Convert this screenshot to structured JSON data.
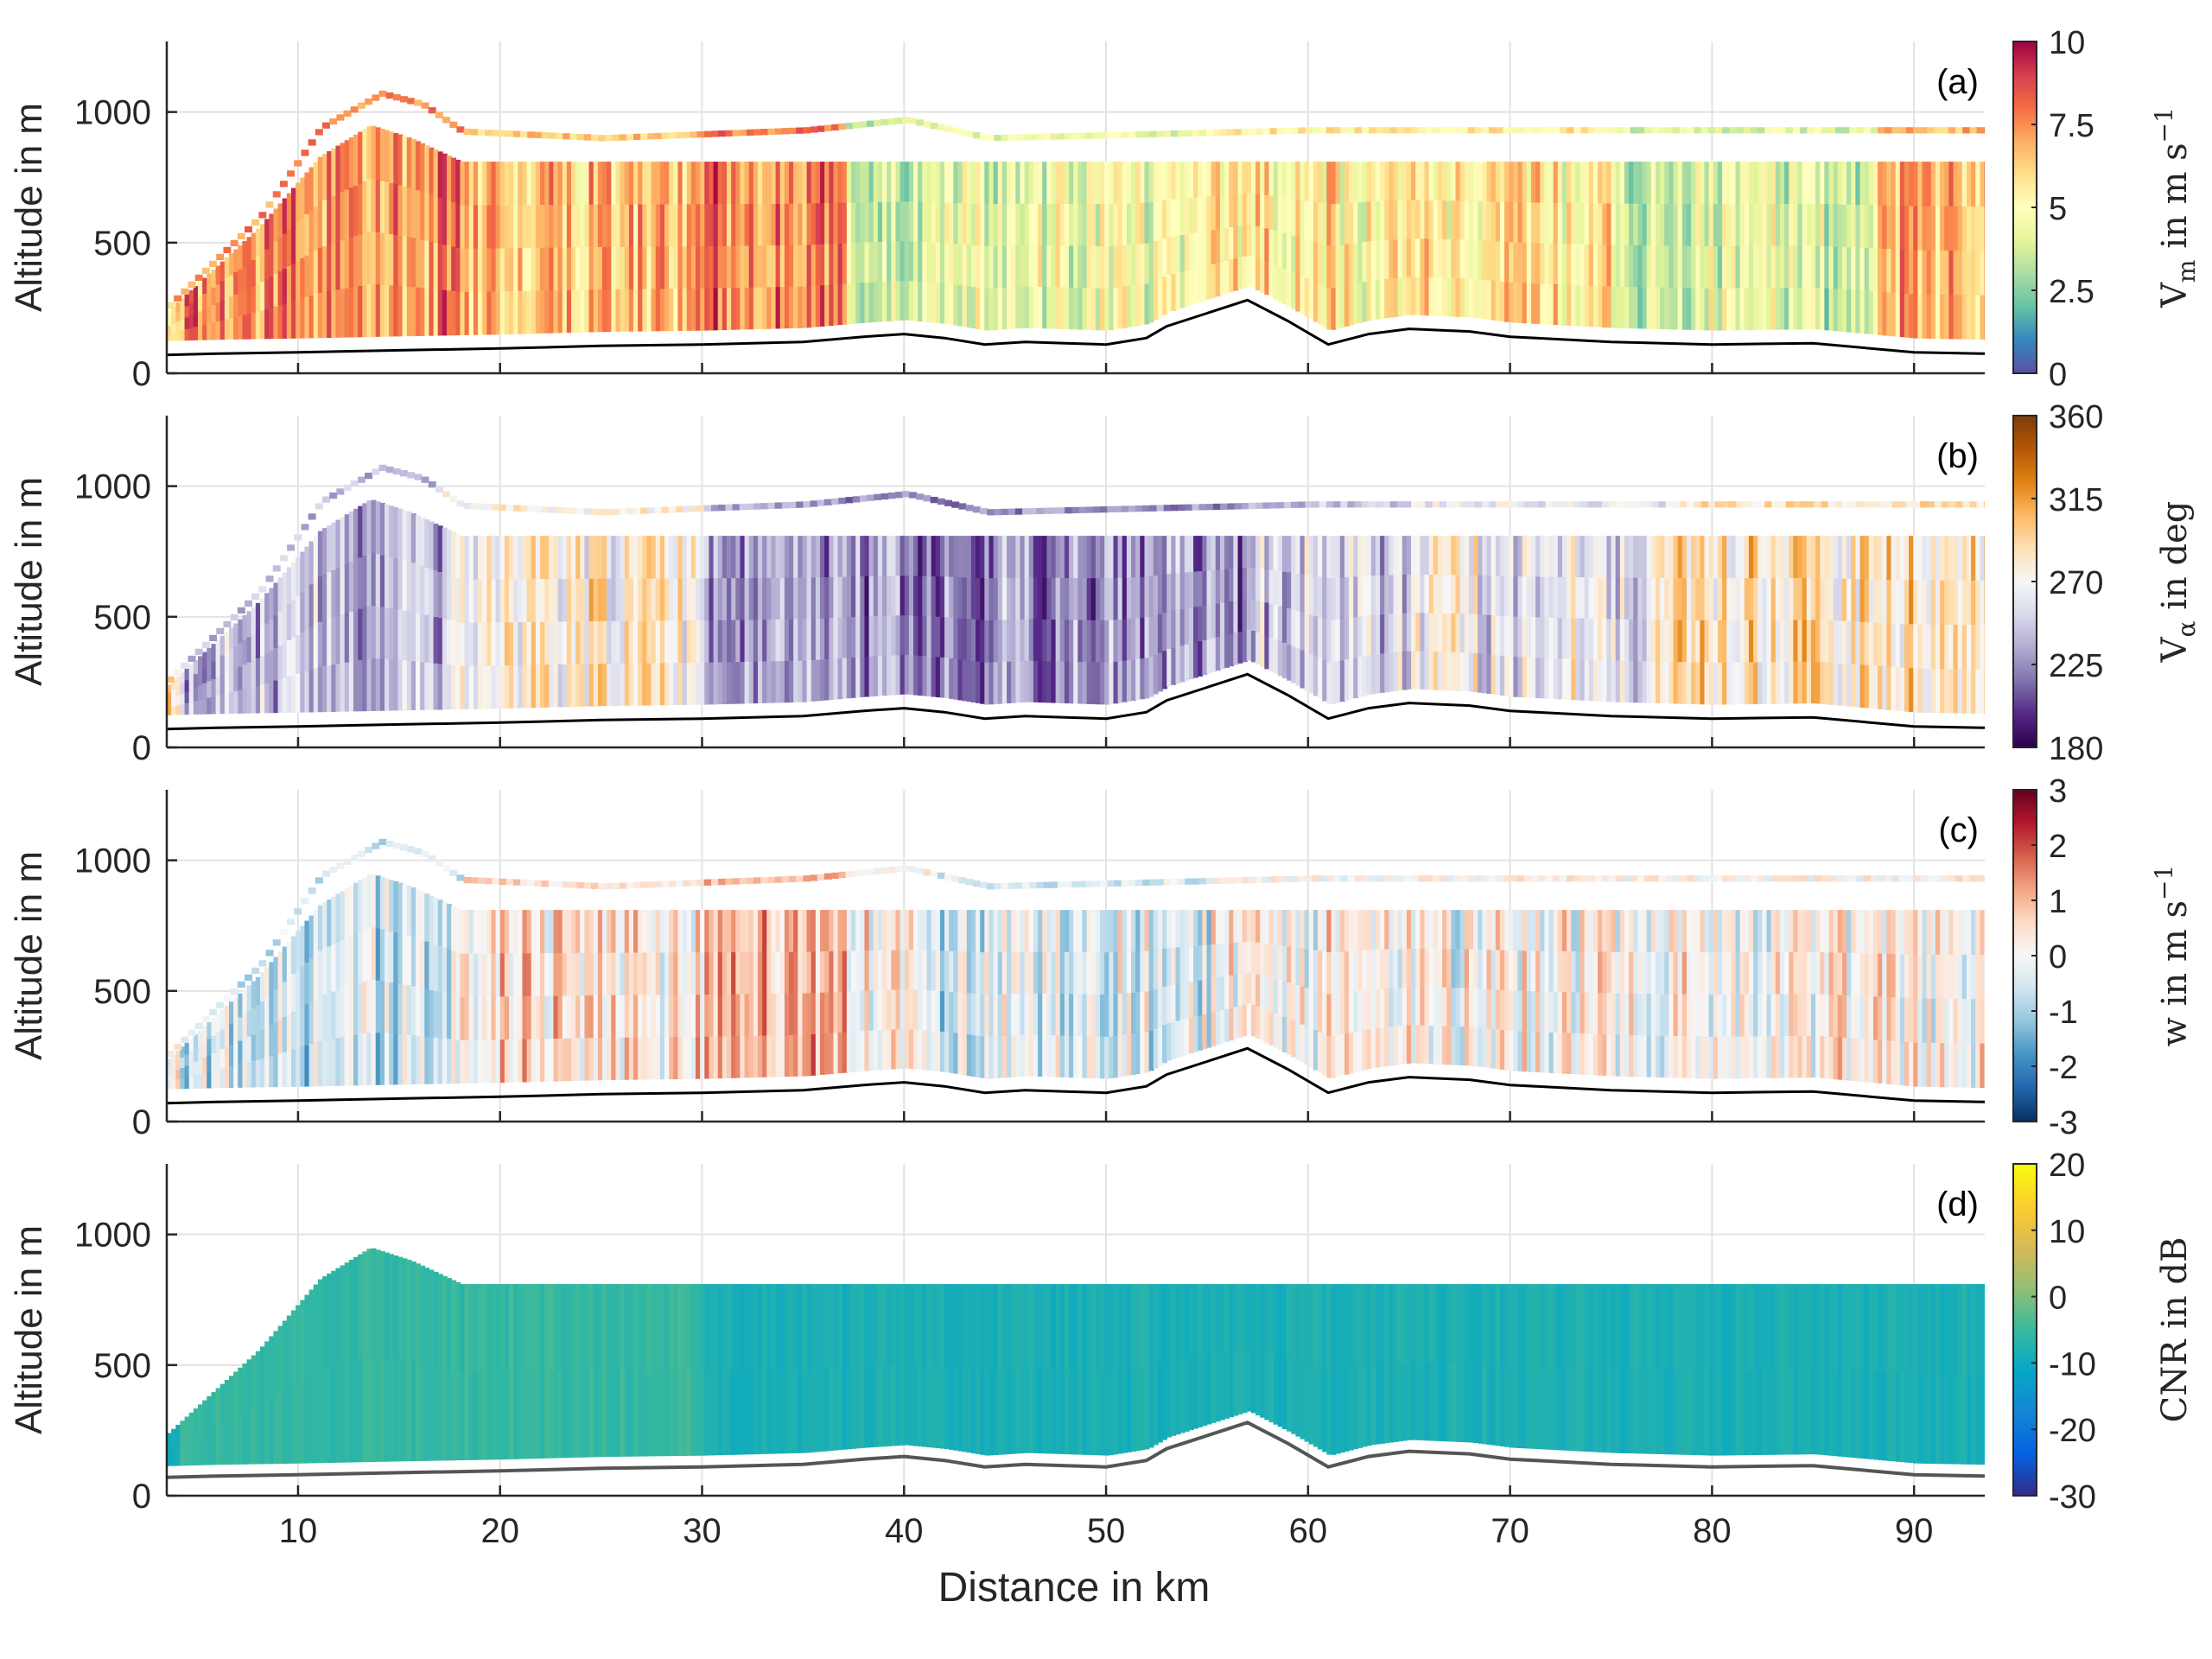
{
  "figure": {
    "x_axis_label": "Distance in km",
    "y_axis_label": "Altitude in m"
  },
  "chart_data": [
    {
      "type": "heatmap",
      "panel_label": "(a)",
      "xlabel": "",
      "ylabel": "Altitude in m",
      "xlim": [
        3.5,
        93.5
      ],
      "ylim": [
        0,
        1270
      ],
      "xticks": [
        10,
        20,
        30,
        40,
        50,
        60,
        70,
        80,
        90
      ],
      "yticks": [
        0,
        500,
        1000
      ],
      "grid": true,
      "colorbar": {
        "label": "V_m in m s^-1",
        "range": [
          0,
          10
        ],
        "ticks": [
          "0",
          "2.5",
          "5",
          "7.5",
          "10"
        ],
        "tick_values": [
          0,
          2.5,
          5,
          7.5,
          10
        ],
        "colormap": "spectral",
        "colors": [
          "#5e4fa2",
          "#3288bd",
          "#66c2a5",
          "#abdda4",
          "#e6f598",
          "#ffffbf",
          "#fee08b",
          "#fdae61",
          "#f46d43",
          "#d53e4f",
          "#9e0142"
        ]
      },
      "terrain_line": {
        "distance_km": [
          3.5,
          6,
          10,
          15,
          20,
          25,
          30,
          35,
          38,
          40,
          42,
          44,
          46,
          48,
          50,
          52,
          53,
          55,
          57,
          59,
          61,
          63,
          65,
          68,
          70,
          75,
          80,
          85,
          90,
          93.5
        ],
        "altitude_m": [
          70,
          75,
          80,
          88,
          95,
          105,
          110,
          120,
          140,
          150,
          135,
          110,
          120,
          115,
          110,
          135,
          180,
          230,
          280,
          200,
          110,
          150,
          170,
          160,
          140,
          120,
          110,
          115,
          80,
          75
        ]
      },
      "data_top_m": [
        {
          "distance_km": 3.5,
          "altitude_m": 240
        },
        {
          "distance_km": 8,
          "altitude_m": 560
        },
        {
          "distance_km": 11,
          "altitude_m": 830
        },
        {
          "distance_km": 13.5,
          "altitude_m": 950
        },
        {
          "distance_km": 15.5,
          "altitude_m": 900
        },
        {
          "distance_km": 18,
          "altitude_m": 810
        },
        {
          "distance_km": 93.5,
          "altitude_m": 810
        }
      ],
      "upper_track_m": [
        {
          "distance_km": 3.5,
          "altitude_m": 260
        },
        {
          "distance_km": 8,
          "altitude_m": 600
        },
        {
          "distance_km": 11,
          "altitude_m": 940
        },
        {
          "distance_km": 14,
          "altitude_m": 1070
        },
        {
          "distance_km": 16,
          "altitude_m": 1030
        },
        {
          "distance_km": 18,
          "altitude_m": 925
        },
        {
          "distance_km": 25,
          "altitude_m": 900
        },
        {
          "distance_km": 35,
          "altitude_m": 930
        },
        {
          "distance_km": 40,
          "altitude_m": 970
        },
        {
          "distance_km": 44,
          "altitude_m": 900
        },
        {
          "distance_km": 60,
          "altitude_m": 930
        },
        {
          "distance_km": 93.5,
          "altitude_m": 930
        }
      ],
      "profile_sections": [
        {
          "distance_km": [
            4,
            18
          ],
          "dominant_value": 7.5
        },
        {
          "distance_km": [
            18,
            30
          ],
          "dominant_value": 6.5
        },
        {
          "distance_km": [
            30,
            37
          ],
          "dominant_value": 7.8
        },
        {
          "distance_km": [
            37,
            41
          ],
          "dominant_value": 3.5
        },
        {
          "distance_km": [
            41,
            55
          ],
          "dominant_value": 4.3
        },
        {
          "distance_km": [
            55,
            75
          ],
          "dominant_value": 5.5
        },
        {
          "distance_km": [
            75,
            88
          ],
          "dominant_value": 4.0
        },
        {
          "distance_km": [
            88,
            93.5
          ],
          "dominant_value": 6.8
        }
      ]
    },
    {
      "type": "heatmap",
      "panel_label": "(b)",
      "xlabel": "",
      "ylabel": "Altitude in m",
      "xlim": [
        3.5,
        93.5
      ],
      "ylim": [
        0,
        1270
      ],
      "xticks": [
        10,
        20,
        30,
        40,
        50,
        60,
        70,
        80,
        90
      ],
      "yticks": [
        0,
        500,
        1000
      ],
      "grid": true,
      "colorbar": {
        "label": "V_α in deg",
        "range": [
          180,
          360
        ],
        "ticks": [
          "180",
          "225",
          "270",
          "315",
          "360"
        ],
        "tick_values": [
          180,
          225,
          270,
          315,
          360
        ],
        "colormap": "purple-orange diverging",
        "colors": [
          "#2d004b",
          "#542788",
          "#8073ac",
          "#b2abd2",
          "#d8daeb",
          "#f7f7f7",
          "#fee0b6",
          "#fdb863",
          "#e08214",
          "#b35806",
          "#7f3b08"
        ]
      },
      "profile_sections": [
        {
          "distance_km": [
            4,
            17
          ],
          "dominant_value": 240
        },
        {
          "distance_km": [
            17,
            30
          ],
          "dominant_value": 275
        },
        {
          "distance_km": [
            30,
            37
          ],
          "dominant_value": 235
        },
        {
          "distance_km": [
            37,
            57
          ],
          "dominant_value": 225
        },
        {
          "distance_km": [
            57,
            65
          ],
          "dominant_value": 245
        },
        {
          "distance_km": [
            65,
            78
          ],
          "dominant_value": 262
        },
        {
          "distance_km": [
            78,
            93.5
          ],
          "dominant_value": 285
        }
      ]
    },
    {
      "type": "heatmap",
      "panel_label": "(c)",
      "xlabel": "",
      "ylabel": "Altitude in m",
      "xlim": [
        3.5,
        93.5
      ],
      "ylim": [
        0,
        1270
      ],
      "xticks": [
        10,
        20,
        30,
        40,
        50,
        60,
        70,
        80,
        90
      ],
      "yticks": [
        0,
        500,
        1000
      ],
      "grid": true,
      "colorbar": {
        "label": "w in m s^-1",
        "range": [
          -3,
          3
        ],
        "ticks": [
          "-3",
          "-2",
          "-1",
          "0",
          "1",
          "2",
          "3"
        ],
        "tick_values": [
          -3,
          -2,
          -1,
          0,
          1,
          2,
          3
        ],
        "colormap": "blue-red diverging",
        "colors": [
          "#053061",
          "#2166ac",
          "#4393c3",
          "#92c5de",
          "#d1e5f0",
          "#f7f7f7",
          "#fddbc7",
          "#f4a582",
          "#d6604d",
          "#b2182b",
          "#67001f"
        ]
      },
      "profile_sections": [
        {
          "distance_km": [
            4,
            18
          ],
          "dominant_value": -0.6
        },
        {
          "distance_km": [
            18,
            30
          ],
          "dominant_value": 0.5
        },
        {
          "distance_km": [
            30,
            37
          ],
          "dominant_value": 0.9
        },
        {
          "distance_km": [
            37,
            41
          ],
          "dominant_value": 0.2
        },
        {
          "distance_km": [
            41,
            55
          ],
          "dominant_value": -0.4
        },
        {
          "distance_km": [
            55,
            93.5
          ],
          "dominant_value": 0.1
        }
      ]
    },
    {
      "type": "heatmap",
      "panel_label": "(d)",
      "xlabel": "Distance in km",
      "ylabel": "Altitude in m",
      "xlim": [
        3.5,
        93.5
      ],
      "ylim": [
        0,
        1270
      ],
      "xticks": [
        10,
        20,
        30,
        40,
        50,
        60,
        70,
        80,
        90
      ],
      "yticks": [
        0,
        500,
        1000
      ],
      "grid": true,
      "colorbar": {
        "label": "CNR in dB",
        "range": [
          -30,
          20
        ],
        "ticks": [
          "-30",
          "-20",
          "-10",
          "0",
          "10",
          "20"
        ],
        "tick_values": [
          -30,
          -20,
          -10,
          0,
          10,
          20
        ],
        "colormap": "parula",
        "colors": [
          "#352a87",
          "#0363e1",
          "#1485d4",
          "#06a7c6",
          "#38b99e",
          "#92bf73",
          "#d9ba56",
          "#fcce2e",
          "#f9fb0e"
        ]
      },
      "profile_sections": [
        {
          "distance_km": [
            4,
            30
          ],
          "dominant_value": -5.5
        },
        {
          "distance_km": [
            30,
            93.5
          ],
          "dominant_value": -8.5
        }
      ]
    }
  ]
}
